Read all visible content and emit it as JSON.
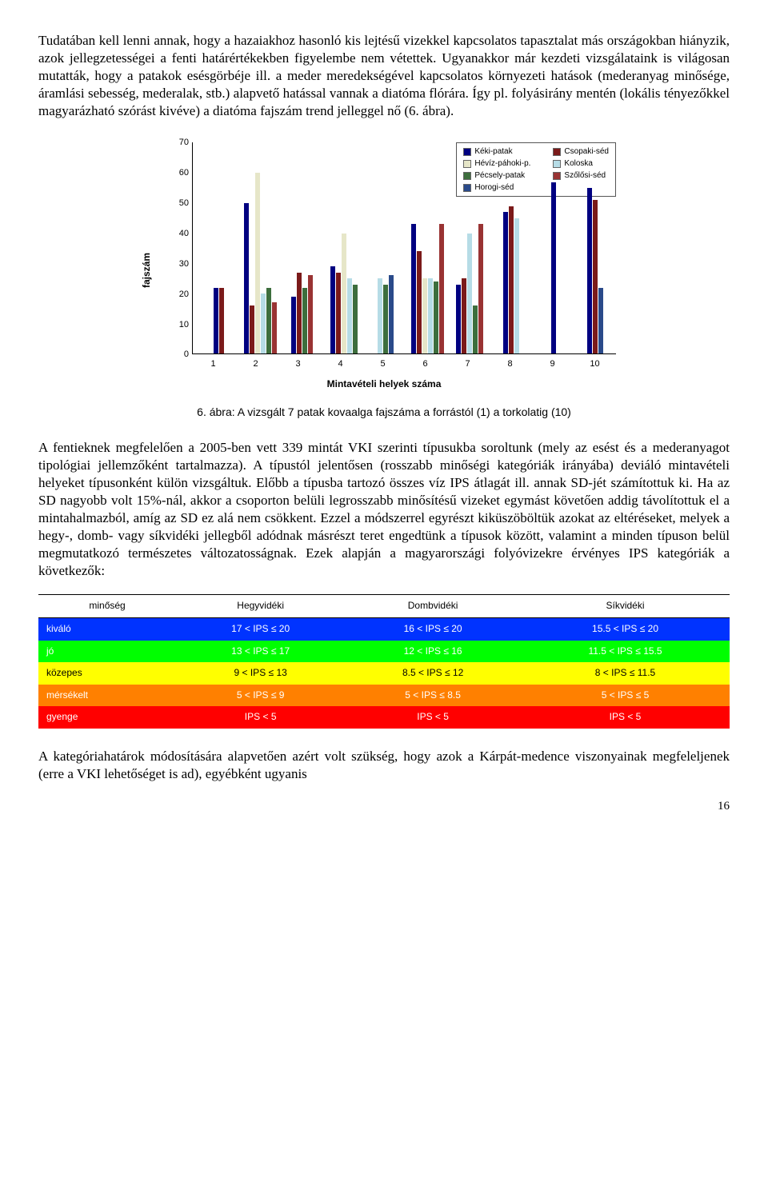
{
  "paragraphs": {
    "p1": "Tudatában kell lenni annak, hogy a hazaiakhoz hasonló kis lejtésű vizekkel kapcsolatos tapasztalat más országokban hiányzik, azok jellegzetességei a fenti határértékekben figyelembe nem vétettek. Ugyanakkor már kezdeti vizsgálataink is világosan mutatták, hogy a patakok esésgörbéje ill. a meder meredekségével kapcsolatos környezeti hatások (mederanyag minősége, áramlási sebesség, mederalak, stb.) alapvető hatással vannak a diatóma flórára. Így pl. folyásirány mentén (lokális tényezőkkel magyarázható szórást kivéve) a diatóma fajszám trend jelleggel nő (6. ábra).",
    "p2": "A fentieknek megfelelően a 2005-ben vett 339 mintát VKI szerinti típusukba soroltunk (mely az esést és a mederanyagot tipológiai jellemzőként tartalmazza). A típustól jelentősen (rosszabb minőségi kategóriák irányába) deviáló mintavételi helyeket típusonként külön vizsgáltuk. Előbb a típusba tartozó összes víz IPS átlagát ill. annak SD-jét számítottuk ki. Ha az SD nagyobb volt 15%-nál, akkor a csoporton belüli legrosszabb minősítésű vizeket egymást követően addig távolítottuk el a mintahalmazból, amíg az SD ez alá nem csökkent. Ezzel a módszerrel egyrészt kiküszöböltük azokat az eltéréseket, melyek a hegy-, domb- vagy síkvidéki jellegből adódnak másrészt teret engedtünk a típusok között, valamint a minden típuson belül megmutatkozó természetes változatosságnak. Ezek alapján a magyarországi folyóvizekre érvényes IPS kategóriák a következők:",
    "p3": "A kategóriahatárok módosítására alapvetően azért volt szükség, hogy azok a Kárpát-medence viszonyainak megfeleljenek (erre a VKI lehetőséget is ad), egyébként ugyanis"
  },
  "chart": {
    "type": "bar",
    "ylabel": "fajszám",
    "xlabel": "Mintavételi helyek száma",
    "ymax": 70,
    "ystep": 10,
    "categories": [
      "1",
      "2",
      "3",
      "4",
      "5",
      "6",
      "7",
      "8",
      "9",
      "10"
    ],
    "series": [
      {
        "name": "Kéki-patak",
        "color": "#000080"
      },
      {
        "name": "Csopaki-séd",
        "color": "#7b1a1a"
      },
      {
        "name": "Hévíz-páhoki-p.",
        "color": "#e6e6c8"
      },
      {
        "name": "Koloska",
        "color": "#b6dce6"
      },
      {
        "name": "Pécsely-patak",
        "color": "#3d6e3d"
      },
      {
        "name": "Szőlősi-séd",
        "color": "#993333"
      },
      {
        "name": "Horogi-séd",
        "color": "#2a4a8a"
      }
    ],
    "data": {
      "1": [
        22,
        22,
        0,
        0,
        0,
        0,
        0
      ],
      "2": [
        50,
        16,
        60,
        20,
        22,
        17,
        0
      ],
      "3": [
        19,
        27,
        0,
        0,
        22,
        26,
        0
      ],
      "4": [
        29,
        27,
        40,
        25,
        23,
        0,
        0
      ],
      "5": [
        0,
        0,
        0,
        25,
        23,
        0,
        26
      ],
      "6": [
        43,
        34,
        25,
        25,
        24,
        43,
        0
      ],
      "7": [
        23,
        25,
        0,
        40,
        16,
        43,
        0
      ],
      "8": [
        47,
        49,
        0,
        45,
        0,
        0,
        0
      ],
      "9": [
        57,
        0,
        0,
        0,
        0,
        0,
        0
      ],
      "10": [
        55,
        51,
        0,
        0,
        0,
        0,
        22
      ]
    }
  },
  "caption": "6. ábra: A vizsgált 7 patak kovaalga fajszáma a forrástól (1) a torkolatig (10)",
  "table": {
    "headers": [
      "minőség",
      "Hegyvidéki",
      "Dombvidéki",
      "Síkvidéki"
    ],
    "rows": [
      {
        "bg": "#0033ff",
        "label": "kiváló",
        "cells": [
          "17 < IPS ≤ 20",
          "16 < IPS ≤  20",
          "15.5 < IPS ≤ 20"
        ]
      },
      {
        "bg": "#00ff00",
        "label": "jó",
        "cells": [
          "13 < IPS ≤  17",
          "12 < IPS ≤  16",
          "11.5 < IPS ≤  15.5"
        ]
      },
      {
        "bg": "#ffff00",
        "label": "közepes",
        "cells": [
          "9 < IPS ≤  13",
          "8.5 < IPS ≤  12",
          "8 < IPS ≤  11.5"
        ],
        "text": "#000"
      },
      {
        "bg": "#ff8000",
        "label": "mérsékelt",
        "cells": [
          "5 < IPS ≤ 9",
          "5 < IPS ≤  8.5",
          "5 < IPS ≤  5"
        ]
      },
      {
        "bg": "#ff0000",
        "label": "gyenge",
        "cells": [
          "IPS < 5",
          "IPS < 5",
          "IPS < 5"
        ]
      }
    ]
  },
  "page_number": "16"
}
